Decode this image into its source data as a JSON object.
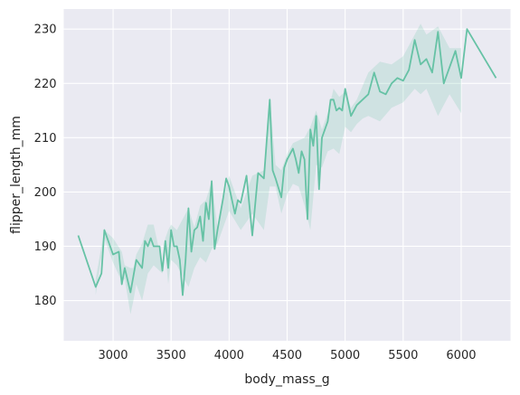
{
  "chart_data": {
    "type": "line",
    "xlabel": "body_mass_g",
    "ylabel": "flipper_length_mm",
    "xlim": [
      2575,
      6425
    ],
    "ylim": [
      172.6,
      233.7
    ],
    "xticks": [
      3000,
      3500,
      4000,
      4500,
      5000,
      5500,
      6000
    ],
    "yticks": [
      180,
      190,
      200,
      210,
      220,
      230
    ],
    "grid": true,
    "colors": {
      "background": "#eaeaf2",
      "grid": "#ffffff",
      "line": "#66c2a5",
      "band": "#66c2a5"
    },
    "series": [
      {
        "x": [
          2700,
          2850,
          2900,
          2925,
          3000,
          3050,
          3075,
          3100,
          3150,
          3175,
          3200,
          3250,
          3275,
          3300,
          3325,
          3350,
          3400,
          3425,
          3450,
          3475,
          3500,
          3525,
          3550,
          3575,
          3600,
          3625,
          3650,
          3675,
          3700,
          3725,
          3750,
          3775,
          3800,
          3825,
          3850,
          3875,
          3900,
          3950,
          3975,
          4000,
          4050,
          4075,
          4100,
          4150,
          4200,
          4250,
          4275,
          4300,
          4350,
          4375,
          4400,
          4450,
          4475,
          4500,
          4550,
          4575,
          4600,
          4625,
          4650,
          4675,
          4700,
          4725,
          4750,
          4775,
          4800,
          4850,
          4875,
          4900,
          4925,
          4950,
          4975,
          5000,
          5050,
          5100,
          5150,
          5200,
          5250,
          5300,
          5350,
          5400,
          5450,
          5500,
          5550,
          5600,
          5650,
          5700,
          5750,
          5800,
          5850,
          5950,
          6000,
          6050,
          6300
        ],
        "y": [
          192,
          182.5,
          185,
          193,
          188.5,
          189,
          183,
          186,
          181.5,
          184.5,
          187.5,
          186,
          191,
          190,
          191.5,
          190,
          190,
          185.5,
          191,
          186,
          193,
          190,
          190,
          187.5,
          181,
          187.5,
          197,
          189,
          193,
          193.5,
          195.5,
          191,
          198,
          195,
          202,
          189.5,
          193,
          199,
          202.5,
          201,
          196,
          198.5,
          198,
          203,
          192,
          203.5,
          203,
          202.5,
          217,
          204,
          202.5,
          199,
          204.5,
          206,
          208,
          206,
          203.5,
          207.5,
          206,
          195,
          211.5,
          208.5,
          214,
          200.5,
          210,
          213,
          217,
          217,
          215,
          215.5,
          215,
          219,
          214,
          216,
          217,
          218,
          222,
          218.5,
          218,
          220,
          221,
          220.5,
          222.5,
          228,
          223.5,
          224.5,
          222,
          229.5,
          220,
          226,
          221,
          230,
          221
        ]
      }
    ],
    "band": {
      "x": [
        2850,
        2925,
        3000,
        3075,
        3100,
        3150,
        3175,
        3200,
        3250,
        3300,
        3350,
        3425,
        3450,
        3475,
        3500,
        3550,
        3650,
        3700,
        3750,
        3800,
        3850,
        3900,
        4000,
        4100,
        4200,
        4300,
        4350,
        4400,
        4450,
        4500,
        4550,
        4600,
        4650,
        4700,
        4750,
        4800,
        4850,
        4900,
        4950,
        5000,
        5050,
        5100,
        5150,
        5200,
        5300,
        5400,
        5500,
        5600,
        5650,
        5700,
        5800,
        5900,
        6000
      ],
      "upper": [
        184,
        193,
        191.5,
        189,
        186.5,
        186,
        186,
        188.5,
        190.5,
        194,
        194,
        186.5,
        191.5,
        193,
        194,
        193,
        197,
        193.5,
        197.5,
        198.5,
        202,
        193.5,
        203,
        197,
        203,
        204,
        217.5,
        205,
        204,
        207,
        209,
        209.5,
        210,
        212,
        215,
        211.5,
        214.5,
        219,
        217.5,
        218.5,
        215.5,
        217,
        219.5,
        222,
        224,
        223.5,
        225,
        229,
        231,
        229,
        230.5,
        226.5,
        226.5
      ],
      "lower": [
        181,
        191.5,
        187,
        183.5,
        184,
        177.5,
        180,
        183,
        180,
        185,
        186.5,
        185,
        189,
        183,
        187.5,
        186.5,
        182.5,
        186,
        188,
        187,
        189.5,
        190.5,
        196.5,
        193,
        196,
        193,
        201,
        201,
        196,
        199.5,
        201.5,
        201,
        197.5,
        193,
        205,
        204.5,
        207.5,
        208,
        207,
        212,
        211,
        212.5,
        213.5,
        214,
        213,
        215.5,
        216.5,
        219,
        218,
        219,
        214,
        218,
        214.5
      ]
    }
  }
}
